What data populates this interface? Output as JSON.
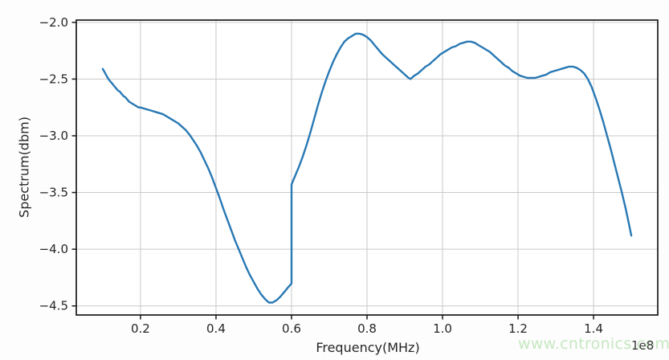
{
  "figure": {
    "background": "#fdfdfd",
    "watermark": {
      "text": "www.cntronics.com",
      "color": "#c6e8c1"
    },
    "offset_label": "1e8"
  },
  "chart_data": {
    "type": "line",
    "title": "",
    "xlabel": "Frequency(MHz)",
    "ylabel": "Spectrum(dbm)",
    "x_unit_multiplier_label": "1e8",
    "grid": true,
    "legend": "none",
    "xlim": [
      0.03,
      1.57
    ],
    "ylim": [
      -4.58,
      -1.98
    ],
    "x_ticks": [
      0.2,
      0.4,
      0.6,
      0.8,
      1.0,
      1.2,
      1.4
    ],
    "x_tick_labels": [
      "0.2",
      "0.4",
      "0.6",
      "0.8",
      "1.0",
      "1.2",
      "1.4"
    ],
    "y_ticks": [
      -2.0,
      -2.5,
      -3.0,
      -3.5,
      -4.0,
      -4.5
    ],
    "y_tick_labels": [
      "−2.0",
      "−2.5",
      "−3.0",
      "−3.5",
      "−4.0",
      "−4.5"
    ],
    "colors": {
      "line": "#2878b4",
      "grid": "#c9c9c9",
      "spine": "#1a1a1a",
      "tick_text": "#262626"
    },
    "series": [
      {
        "name": "spectrum",
        "points": [
          [
            0.1,
            -2.41
          ],
          [
            0.105,
            -2.44
          ],
          [
            0.11,
            -2.47
          ],
          [
            0.115,
            -2.5
          ],
          [
            0.12,
            -2.52
          ],
          [
            0.125,
            -2.54
          ],
          [
            0.13,
            -2.56
          ],
          [
            0.135,
            -2.58
          ],
          [
            0.14,
            -2.6
          ],
          [
            0.145,
            -2.61
          ],
          [
            0.15,
            -2.63
          ],
          [
            0.155,
            -2.65
          ],
          [
            0.16,
            -2.66
          ],
          [
            0.165,
            -2.68
          ],
          [
            0.17,
            -2.7
          ],
          [
            0.175,
            -2.71
          ],
          [
            0.18,
            -2.72
          ],
          [
            0.185,
            -2.73
          ],
          [
            0.19,
            -2.74
          ],
          [
            0.195,
            -2.75
          ],
          [
            0.2,
            -2.75
          ],
          [
            0.21,
            -2.76
          ],
          [
            0.22,
            -2.77
          ],
          [
            0.23,
            -2.78
          ],
          [
            0.24,
            -2.79
          ],
          [
            0.25,
            -2.8
          ],
          [
            0.26,
            -2.81
          ],
          [
            0.27,
            -2.83
          ],
          [
            0.28,
            -2.85
          ],
          [
            0.29,
            -2.87
          ],
          [
            0.3,
            -2.89
          ],
          [
            0.31,
            -2.92
          ],
          [
            0.32,
            -2.95
          ],
          [
            0.33,
            -2.99
          ],
          [
            0.34,
            -3.04
          ],
          [
            0.35,
            -3.09
          ],
          [
            0.36,
            -3.15
          ],
          [
            0.37,
            -3.22
          ],
          [
            0.38,
            -3.29
          ],
          [
            0.39,
            -3.37
          ],
          [
            0.4,
            -3.46
          ],
          [
            0.41,
            -3.55
          ],
          [
            0.42,
            -3.65
          ],
          [
            0.43,
            -3.74
          ],
          [
            0.44,
            -3.83
          ],
          [
            0.45,
            -3.92
          ],
          [
            0.46,
            -4.0
          ],
          [
            0.47,
            -4.08
          ],
          [
            0.48,
            -4.16
          ],
          [
            0.49,
            -4.23
          ],
          [
            0.5,
            -4.29
          ],
          [
            0.51,
            -4.35
          ],
          [
            0.52,
            -4.4
          ],
          [
            0.53,
            -4.44
          ],
          [
            0.54,
            -4.47
          ],
          [
            0.55,
            -4.47
          ],
          [
            0.56,
            -4.45
          ],
          [
            0.57,
            -4.42
          ],
          [
            0.58,
            -4.38
          ],
          [
            0.59,
            -4.34
          ],
          [
            0.598,
            -4.31
          ],
          [
            0.6,
            -4.3
          ],
          [
            0.6,
            -3.43
          ],
          [
            0.605,
            -3.39
          ],
          [
            0.61,
            -3.35
          ],
          [
            0.62,
            -3.27
          ],
          [
            0.63,
            -3.18
          ],
          [
            0.64,
            -3.08
          ],
          [
            0.65,
            -2.97
          ],
          [
            0.66,
            -2.85
          ],
          [
            0.67,
            -2.73
          ],
          [
            0.68,
            -2.62
          ],
          [
            0.69,
            -2.52
          ],
          [
            0.7,
            -2.43
          ],
          [
            0.71,
            -2.35
          ],
          [
            0.72,
            -2.28
          ],
          [
            0.73,
            -2.22
          ],
          [
            0.74,
            -2.17
          ],
          [
            0.75,
            -2.14
          ],
          [
            0.76,
            -2.12
          ],
          [
            0.77,
            -2.1
          ],
          [
            0.78,
            -2.1
          ],
          [
            0.79,
            -2.11
          ],
          [
            0.8,
            -2.13
          ],
          [
            0.81,
            -2.16
          ],
          [
            0.82,
            -2.2
          ],
          [
            0.83,
            -2.24
          ],
          [
            0.84,
            -2.28
          ],
          [
            0.85,
            -2.31
          ],
          [
            0.86,
            -2.34
          ],
          [
            0.87,
            -2.37
          ],
          [
            0.88,
            -2.4
          ],
          [
            0.89,
            -2.43
          ],
          [
            0.9,
            -2.46
          ],
          [
            0.91,
            -2.49
          ],
          [
            0.915,
            -2.5
          ],
          [
            0.925,
            -2.47
          ],
          [
            0.935,
            -2.45
          ],
          [
            0.945,
            -2.42
          ],
          [
            0.955,
            -2.39
          ],
          [
            0.965,
            -2.37
          ],
          [
            0.975,
            -2.34
          ],
          [
            0.985,
            -2.31
          ],
          [
            0.995,
            -2.28
          ],
          [
            1.005,
            -2.26
          ],
          [
            1.015,
            -2.24
          ],
          [
            1.025,
            -2.22
          ],
          [
            1.035,
            -2.21
          ],
          [
            1.045,
            -2.19
          ],
          [
            1.055,
            -2.18
          ],
          [
            1.065,
            -2.17
          ],
          [
            1.075,
            -2.17
          ],
          [
            1.085,
            -2.18
          ],
          [
            1.095,
            -2.2
          ],
          [
            1.105,
            -2.22
          ],
          [
            1.115,
            -2.24
          ],
          [
            1.125,
            -2.26
          ],
          [
            1.135,
            -2.29
          ],
          [
            1.145,
            -2.32
          ],
          [
            1.155,
            -2.35
          ],
          [
            1.165,
            -2.38
          ],
          [
            1.175,
            -2.4
          ],
          [
            1.185,
            -2.43
          ],
          [
            1.195,
            -2.45
          ],
          [
            1.205,
            -2.47
          ],
          [
            1.215,
            -2.48
          ],
          [
            1.225,
            -2.49
          ],
          [
            1.235,
            -2.49
          ],
          [
            1.245,
            -2.49
          ],
          [
            1.255,
            -2.48
          ],
          [
            1.265,
            -2.47
          ],
          [
            1.275,
            -2.46
          ],
          [
            1.285,
            -2.44
          ],
          [
            1.295,
            -2.43
          ],
          [
            1.305,
            -2.42
          ],
          [
            1.315,
            -2.41
          ],
          [
            1.325,
            -2.4
          ],
          [
            1.335,
            -2.39
          ],
          [
            1.345,
            -2.39
          ],
          [
            1.355,
            -2.4
          ],
          [
            1.365,
            -2.42
          ],
          [
            1.375,
            -2.45
          ],
          [
            1.385,
            -2.5
          ],
          [
            1.395,
            -2.57
          ],
          [
            1.405,
            -2.66
          ],
          [
            1.415,
            -2.76
          ],
          [
            1.425,
            -2.87
          ],
          [
            1.435,
            -2.99
          ],
          [
            1.445,
            -3.11
          ],
          [
            1.455,
            -3.24
          ],
          [
            1.465,
            -3.37
          ],
          [
            1.475,
            -3.5
          ],
          [
            1.485,
            -3.64
          ],
          [
            1.492,
            -3.75
          ],
          [
            1.5,
            -3.88
          ]
        ]
      }
    ]
  }
}
